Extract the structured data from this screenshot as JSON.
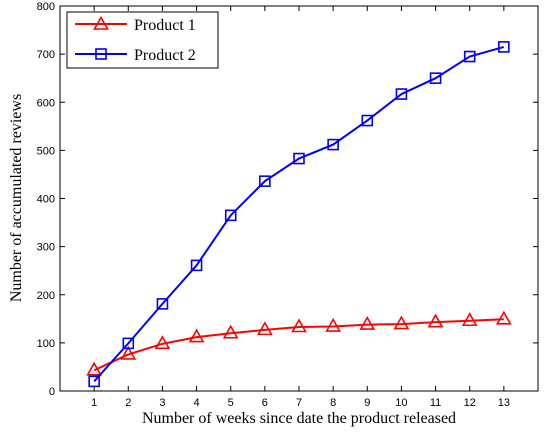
{
  "chart_data": {
    "type": "line",
    "title": "",
    "xlabel": "Number of weeks since date the product released",
    "ylabel": "Number of accumulated reviews",
    "x": [
      1,
      2,
      3,
      4,
      5,
      6,
      7,
      8,
      9,
      10,
      11,
      12,
      13
    ],
    "xlim": [
      0,
      14
    ],
    "ylim": [
      0,
      800
    ],
    "xticks": [
      "1",
      "2",
      "3",
      "4",
      "5",
      "6",
      "7",
      "8",
      "9",
      "10",
      "11",
      "12",
      "13"
    ],
    "yticks": [
      "0",
      "100",
      "200",
      "300",
      "400",
      "500",
      "600",
      "700",
      "800"
    ],
    "grid": false,
    "legend_position": "top-left",
    "series": [
      {
        "name": "Product 1",
        "color": "#ff0000",
        "marker": "triangle",
        "values": [
          43,
          76,
          98,
          112,
          120,
          127,
          133,
          134,
          138,
          139,
          143,
          146,
          149
        ]
      },
      {
        "name": "Product 2",
        "color": "#0000ff",
        "marker": "square",
        "values": [
          20,
          99,
          181,
          261,
          365,
          436,
          483,
          512,
          562,
          617,
          650,
          695,
          715
        ]
      }
    ]
  }
}
